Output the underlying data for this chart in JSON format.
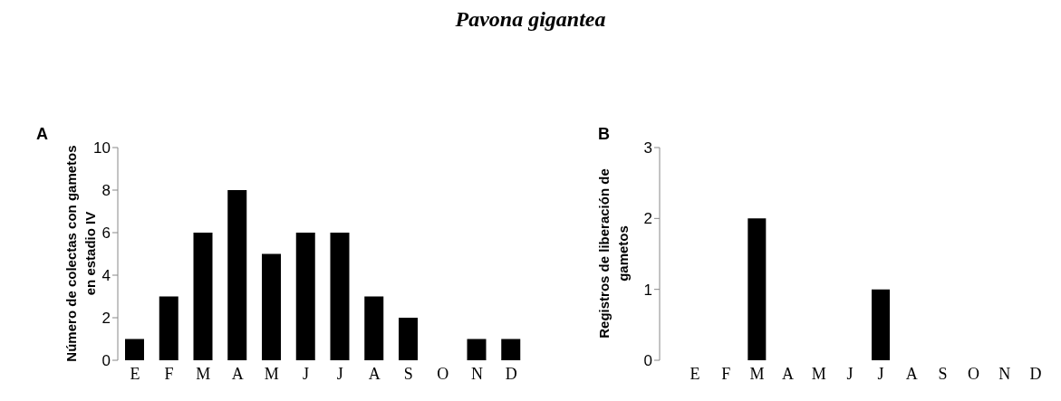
{
  "chart_data": [
    {
      "type": "bar",
      "title": "Pavona gigantea",
      "annotations": [
        "A"
      ],
      "ylabel": "Número de colectas con gametos en estadio IV",
      "categories": [
        "E",
        "F",
        "M",
        "A",
        "M",
        "J",
        "J",
        "A",
        "S",
        "O",
        "N",
        "D"
      ],
      "values": [
        1,
        3,
        6,
        8,
        5,
        6,
        6,
        3,
        2,
        0,
        1,
        1
      ],
      "color": "#000000",
      "ylim": [
        0,
        10
      ],
      "yticks": [
        0,
        2,
        4,
        6,
        8,
        10
      ],
      "grid": false,
      "legend": false
    },
    {
      "type": "bar",
      "annotations": [
        "B"
      ],
      "ylabel": "Registros de liberación de gametos",
      "categories": [
        "E",
        "F",
        "M",
        "A",
        "M",
        "J",
        "J",
        "A",
        "S",
        "O",
        "N",
        "D"
      ],
      "values": [
        0,
        0,
        2,
        0,
        0,
        0,
        1,
        0,
        0,
        0,
        0,
        0
      ],
      "color": "#000000",
      "ylim": [
        0,
        3
      ],
      "yticks": [
        0,
        1,
        2,
        3
      ],
      "grid": false,
      "legend": false
    }
  ]
}
